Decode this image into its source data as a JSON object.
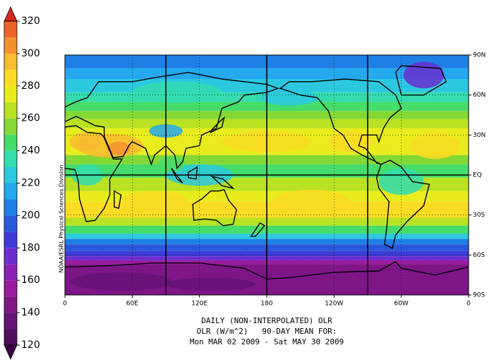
{
  "colorbar": {
    "ticks": [
      120,
      140,
      160,
      180,
      200,
      220,
      240,
      260,
      280,
      300,
      320
    ],
    "colors": [
      "#50105e",
      "#651278",
      "#7e1688",
      "#9a1c9e",
      "#8a22b8",
      "#6a2ed0",
      "#3e3cd6",
      "#2a58dc",
      "#1e80e4",
      "#24a8ee",
      "#2cc8e0",
      "#34dcae",
      "#46dc6a",
      "#84d834",
      "#b8e222",
      "#e8ec1c",
      "#fadc24",
      "#f8bc30",
      "#f39030",
      "#ee6428"
    ],
    "under_color": "#3c0046",
    "over_color": "#d8281c"
  },
  "map": {
    "xticks": [
      0,
      {
        "value": 60,
        "label": "60E"
      },
      {
        "value": 120,
        "label": "120E"
      },
      180,
      {
        "value": 240,
        "label": "120W"
      },
      {
        "value": 300,
        "label": "60W"
      },
      {
        "value": 360,
        "label": "0"
      }
    ],
    "yticks": [
      {
        "value": 90,
        "label": "90N"
      },
      {
        "value": 60,
        "label": "60N"
      },
      {
        "value": 30,
        "label": "30N"
      },
      {
        "value": 0,
        "label": "EQ"
      },
      {
        "value": -30,
        "label": "30S"
      },
      {
        "value": -60,
        "label": "60S"
      },
      {
        "value": -90,
        "label": "90S"
      }
    ]
  },
  "caption": [
    "DAILY (NON-INTERPOLATED) OLR",
    "OLR (W/m^2)   90-DAY MEAN FOR:",
    "Mon MAR 02 2009 - Sat MAY 30 2009"
  ],
  "credit": "NOAA/ESRL Physical Sciences Division"
}
